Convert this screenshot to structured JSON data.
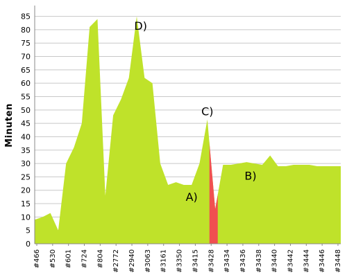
{
  "chart_data": {
    "type": "area",
    "ylabel": "Minuten",
    "ylim": [
      0,
      88
    ],
    "yticks": [
      0,
      5,
      10,
      15,
      20,
      25,
      30,
      35,
      40,
      45,
      50,
      55,
      60,
      65,
      70,
      75,
      80,
      85
    ],
    "grid": "y-axis-major",
    "colors": {
      "area": "#bfe22a",
      "highlight": "#f05050",
      "grid": "#c8c8c8",
      "axis": "#888888"
    },
    "x_tick_labels": [
      "#466",
      "#530",
      "#601",
      "#724",
      "#804",
      "#2772",
      "#2940",
      "#3063",
      "#3161",
      "#3350",
      "#3415",
      "#3428",
      "#3434",
      "#3436",
      "#3438",
      "#3440",
      "#3442",
      "#3444",
      "#3446",
      "#3448"
    ],
    "series": [
      {
        "values": [
          9,
          10,
          11.5,
          5,
          30,
          36,
          45,
          81,
          84,
          18,
          48,
          54,
          62,
          85,
          62,
          60,
          30,
          22,
          23,
          22,
          22,
          30,
          46.5,
          13,
          29.5,
          29.5,
          30,
          30.5,
          30,
          29.5,
          33,
          29,
          29,
          29.5,
          29.5,
          29.5,
          29,
          29,
          29,
          29
        ]
      }
    ],
    "highlight_range": [
      22,
      24
    ],
    "annotations": [
      {
        "text": "A)",
        "x": 20,
        "y": 16
      },
      {
        "text": "B)",
        "x": 27.5,
        "y": 24
      },
      {
        "text": "C)",
        "x": 22,
        "y": 48
      },
      {
        "text": "D)",
        "x": 13.5,
        "y": 80
      }
    ]
  }
}
